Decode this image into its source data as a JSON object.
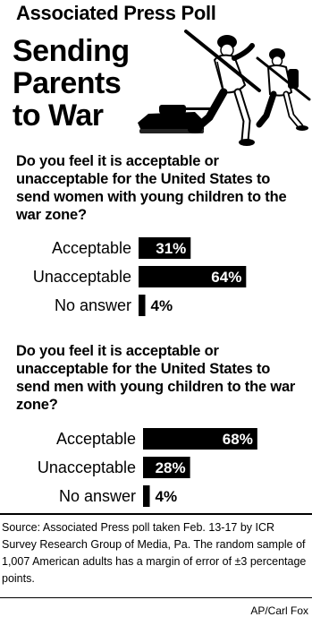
{
  "poll_title": "Associated Press Poll",
  "headline": [
    "Sending",
    "Parents",
    "to War"
  ],
  "chart_data": [
    {
      "type": "bar",
      "orientation": "horizontal",
      "title": "Do you feel it is acceptable or unacceptable for the United States to send women with young children to the war zone?",
      "categories": [
        "Acceptable",
        "Unacceptable",
        "No answer"
      ],
      "values": [
        31,
        64,
        4
      ],
      "value_labels": [
        "31%",
        "64%",
        "4%"
      ],
      "xlim": [
        0,
        100
      ],
      "bar_color": "#000000"
    },
    {
      "type": "bar",
      "orientation": "horizontal",
      "title": "Do you feel it is acceptable or unacceptable for the United States to send men with young children to the war zone?",
      "categories": [
        "Acceptable",
        "Unacceptable",
        "No answer"
      ],
      "values": [
        68,
        28,
        4
      ],
      "value_labels": [
        "68%",
        "28%",
        "4%"
      ],
      "xlim": [
        0,
        100
      ],
      "bar_color": "#000000"
    }
  ],
  "source": "Source: Associated Press poll taken Feb. 13-17 by ICR Survey Research Group of Media, Pa. The random sample of 1,007 American adults has a margin of error of ±3 percentage points.",
  "credit": "AP/Carl Fox"
}
